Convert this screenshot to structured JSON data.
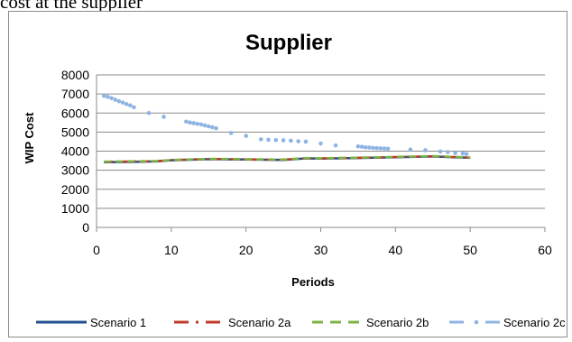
{
  "page_text": "cost at the supplier",
  "chart_data": {
    "type": "scatter",
    "title": "Supplier",
    "xlabel": "Periods",
    "ylabel": "WIP Cost",
    "xlim": [
      0,
      60
    ],
    "ylim": [
      0,
      8000
    ],
    "xticks": [
      0,
      10,
      20,
      30,
      40,
      50,
      60
    ],
    "yticks": [
      0,
      1000,
      2000,
      3000,
      4000,
      5000,
      6000,
      7000,
      8000
    ],
    "grid": "horizontal",
    "legend_position": "bottom",
    "series": [
      {
        "name": "Scenario 1",
        "style": "solid",
        "color": "#1f4f8f",
        "x": [
          1,
          5,
          8,
          10,
          15,
          20,
          25,
          28,
          30,
          35,
          40,
          45,
          50
        ],
        "y": [
          3420,
          3440,
          3460,
          3520,
          3580,
          3560,
          3540,
          3620,
          3610,
          3640,
          3680,
          3720,
          3650
        ]
      },
      {
        "name": "Scenario 2a",
        "style": "dash-dot",
        "color": "#c0392b",
        "x": [
          1,
          5,
          8,
          10,
          15,
          20,
          25,
          28,
          30,
          35,
          40,
          45,
          50
        ],
        "y": [
          3440,
          3460,
          3470,
          3530,
          3590,
          3570,
          3550,
          3630,
          3620,
          3650,
          3690,
          3730,
          3660
        ]
      },
      {
        "name": "Scenario 2b",
        "style": "dashed",
        "color": "#7cb342",
        "x": [
          1,
          5,
          8,
          10,
          15,
          20,
          25,
          28,
          30,
          35,
          40,
          45,
          50
        ],
        "y": [
          3450,
          3470,
          3480,
          3540,
          3600,
          3580,
          3560,
          3640,
          3630,
          3660,
          3700,
          3740,
          3670
        ]
      },
      {
        "name": "Scenario 2c",
        "style": "dots",
        "color": "#8eb4e3",
        "x": [
          1,
          1.5,
          2,
          2.5,
          3,
          3.5,
          4,
          4.5,
          5,
          7,
          9,
          12,
          12.5,
          13,
          13.5,
          14,
          14.5,
          15,
          15.5,
          16,
          18,
          20,
          22,
          23,
          24,
          25,
          26,
          27,
          28,
          30,
          32,
          35,
          35.5,
          36,
          36.5,
          37,
          37.5,
          38,
          38.5,
          39,
          42,
          44,
          46,
          47,
          48,
          49,
          49.5
        ],
        "y": [
          6900,
          6850,
          6780,
          6700,
          6620,
          6550,
          6470,
          6400,
          6300,
          6000,
          5800,
          5550,
          5500,
          5470,
          5430,
          5400,
          5350,
          5300,
          5250,
          5200,
          4950,
          4800,
          4620,
          4600,
          4580,
          4570,
          4550,
          4520,
          4500,
          4400,
          4300,
          4250,
          4230,
          4200,
          4190,
          4170,
          4160,
          4150,
          4140,
          4130,
          4080,
          4050,
          3980,
          3950,
          3900,
          3880,
          3850
        ]
      }
    ]
  }
}
